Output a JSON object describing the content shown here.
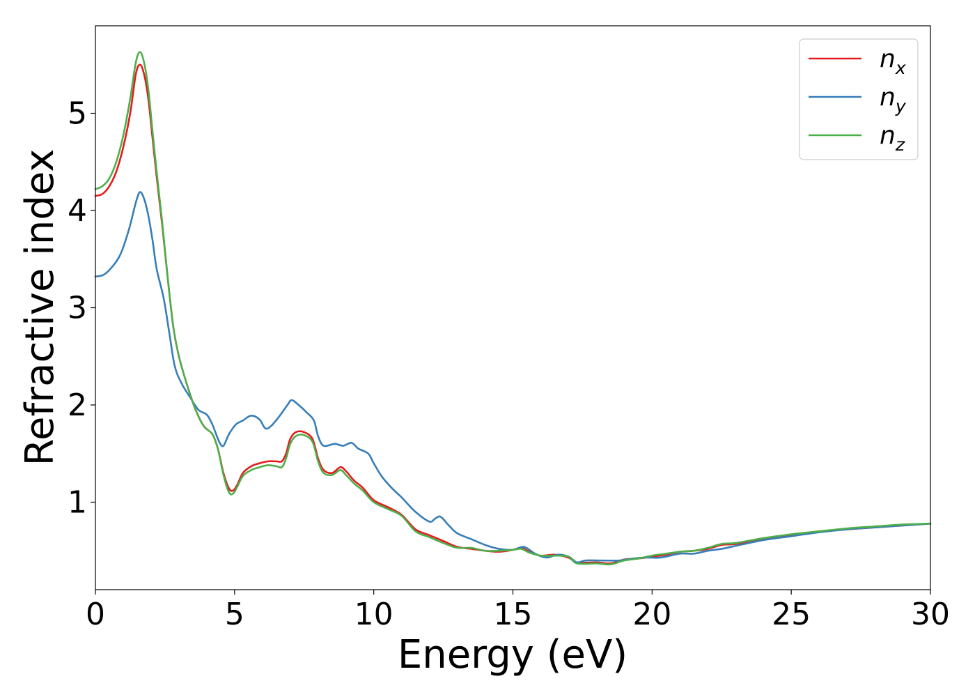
{
  "chart_data": {
    "type": "line",
    "title": "",
    "xlabel": "Energy (eV)",
    "ylabel": "Refractive index",
    "xlim": [
      0,
      30
    ],
    "ylim": [
      0.1,
      5.9
    ],
    "xticks": [
      0,
      5,
      10,
      15,
      20,
      25,
      30
    ],
    "xtick_labels": [
      "0",
      "5",
      "10",
      "15",
      "20",
      "25",
      "30"
    ],
    "yticks": [
      1,
      2,
      3,
      4,
      5
    ],
    "ytick_labels": [
      "1",
      "2",
      "3",
      "4",
      "5"
    ],
    "grid": false,
    "legend_position": "top-right",
    "series": [
      {
        "name": "n_x",
        "label_base": "n",
        "label_sub": "x",
        "color": "#e41a1c",
        "points": [
          [
            0,
            4.15
          ],
          [
            0.25,
            4.17
          ],
          [
            0.5,
            4.25
          ],
          [
            0.75,
            4.4
          ],
          [
            1.0,
            4.65
          ],
          [
            1.25,
            5.0
          ],
          [
            1.45,
            5.4
          ],
          [
            1.6,
            5.5
          ],
          [
            1.75,
            5.4
          ],
          [
            1.9,
            5.15
          ],
          [
            2.05,
            4.75
          ],
          [
            2.2,
            4.35
          ],
          [
            2.4,
            3.85
          ],
          [
            2.6,
            3.3
          ],
          [
            2.8,
            2.8
          ],
          [
            3.0,
            2.5
          ],
          [
            3.3,
            2.2
          ],
          [
            3.6,
            1.95
          ],
          [
            3.9,
            1.78
          ],
          [
            4.2,
            1.7
          ],
          [
            4.4,
            1.55
          ],
          [
            4.6,
            1.3
          ],
          [
            4.8,
            1.14
          ],
          [
            4.95,
            1.12
          ],
          [
            5.1,
            1.18
          ],
          [
            5.3,
            1.3
          ],
          [
            5.6,
            1.37
          ],
          [
            5.9,
            1.4
          ],
          [
            6.2,
            1.42
          ],
          [
            6.5,
            1.42
          ],
          [
            6.7,
            1.42
          ],
          [
            6.85,
            1.5
          ],
          [
            7.0,
            1.65
          ],
          [
            7.2,
            1.72
          ],
          [
            7.5,
            1.72
          ],
          [
            7.8,
            1.65
          ],
          [
            8.0,
            1.45
          ],
          [
            8.2,
            1.33
          ],
          [
            8.5,
            1.3
          ],
          [
            8.8,
            1.36
          ],
          [
            9.0,
            1.32
          ],
          [
            9.3,
            1.22
          ],
          [
            9.6,
            1.15
          ],
          [
            10.0,
            1.02
          ],
          [
            10.5,
            0.95
          ],
          [
            11.0,
            0.87
          ],
          [
            11.5,
            0.72
          ],
          [
            12.0,
            0.66
          ],
          [
            12.5,
            0.6
          ],
          [
            13.0,
            0.54
          ],
          [
            13.5,
            0.52
          ],
          [
            14.0,
            0.5
          ],
          [
            14.5,
            0.49
          ],
          [
            15.0,
            0.51
          ],
          [
            15.3,
            0.53
          ],
          [
            15.6,
            0.49
          ],
          [
            16.0,
            0.45
          ],
          [
            16.5,
            0.46
          ],
          [
            17.0,
            0.43
          ],
          [
            17.3,
            0.38
          ],
          [
            18.0,
            0.38
          ],
          [
            18.5,
            0.37
          ],
          [
            19.0,
            0.41
          ],
          [
            19.5,
            0.42
          ],
          [
            20.0,
            0.44
          ],
          [
            20.5,
            0.46
          ],
          [
            21.0,
            0.49
          ],
          [
            21.5,
            0.5
          ],
          [
            22.0,
            0.52
          ],
          [
            22.5,
            0.56
          ],
          [
            23.0,
            0.57
          ],
          [
            24.0,
            0.62
          ],
          [
            25.0,
            0.66
          ],
          [
            26.0,
            0.7
          ],
          [
            27.0,
            0.72
          ],
          [
            28.0,
            0.74
          ],
          [
            29.0,
            0.76
          ],
          [
            30.0,
            0.78
          ]
        ]
      },
      {
        "name": "n_y",
        "label_base": "n",
        "label_sub": "y",
        "color": "#377eb8",
        "points": [
          [
            0,
            3.32
          ],
          [
            0.3,
            3.34
          ],
          [
            0.6,
            3.42
          ],
          [
            0.9,
            3.55
          ],
          [
            1.2,
            3.8
          ],
          [
            1.45,
            4.08
          ],
          [
            1.6,
            4.19
          ],
          [
            1.75,
            4.12
          ],
          [
            1.9,
            3.95
          ],
          [
            2.05,
            3.7
          ],
          [
            2.2,
            3.4
          ],
          [
            2.45,
            3.1
          ],
          [
            2.65,
            2.75
          ],
          [
            2.85,
            2.4
          ],
          [
            3.1,
            2.22
          ],
          [
            3.4,
            2.08
          ],
          [
            3.7,
            1.95
          ],
          [
            4.0,
            1.9
          ],
          [
            4.2,
            1.8
          ],
          [
            4.45,
            1.62
          ],
          [
            4.6,
            1.58
          ],
          [
            4.8,
            1.7
          ],
          [
            5.05,
            1.8
          ],
          [
            5.3,
            1.84
          ],
          [
            5.6,
            1.89
          ],
          [
            5.9,
            1.85
          ],
          [
            6.1,
            1.76
          ],
          [
            6.3,
            1.78
          ],
          [
            6.6,
            1.88
          ],
          [
            6.9,
            2.0
          ],
          [
            7.05,
            2.05
          ],
          [
            7.3,
            2.0
          ],
          [
            7.6,
            1.92
          ],
          [
            7.85,
            1.84
          ],
          [
            8.0,
            1.68
          ],
          [
            8.2,
            1.58
          ],
          [
            8.6,
            1.6
          ],
          [
            8.9,
            1.58
          ],
          [
            9.2,
            1.61
          ],
          [
            9.45,
            1.55
          ],
          [
            9.8,
            1.5
          ],
          [
            10.0,
            1.4
          ],
          [
            10.3,
            1.26
          ],
          [
            10.7,
            1.13
          ],
          [
            11.0,
            1.05
          ],
          [
            11.5,
            0.9
          ],
          [
            12.0,
            0.8
          ],
          [
            12.2,
            0.83
          ],
          [
            12.4,
            0.85
          ],
          [
            12.7,
            0.76
          ],
          [
            13.0,
            0.68
          ],
          [
            13.5,
            0.62
          ],
          [
            14.0,
            0.56
          ],
          [
            14.5,
            0.52
          ],
          [
            15.0,
            0.51
          ],
          [
            15.4,
            0.54
          ],
          [
            15.8,
            0.47
          ],
          [
            16.2,
            0.43
          ],
          [
            16.6,
            0.46
          ],
          [
            17.0,
            0.44
          ],
          [
            17.3,
            0.38
          ],
          [
            17.6,
            0.4
          ],
          [
            18.2,
            0.4
          ],
          [
            18.8,
            0.4
          ],
          [
            19.3,
            0.42
          ],
          [
            19.8,
            0.43
          ],
          [
            20.3,
            0.43
          ],
          [
            21.0,
            0.47
          ],
          [
            21.5,
            0.47
          ],
          [
            22.0,
            0.5
          ],
          [
            22.5,
            0.52
          ],
          [
            23.0,
            0.55
          ],
          [
            24.0,
            0.61
          ],
          [
            25.0,
            0.65
          ],
          [
            26.0,
            0.69
          ],
          [
            27.0,
            0.72
          ],
          [
            28.0,
            0.74
          ],
          [
            29.0,
            0.76
          ],
          [
            30.0,
            0.78
          ]
        ]
      },
      {
        "name": "n_z",
        "label_base": "n",
        "label_sub": "z",
        "color": "#4daf4a",
        "points": [
          [
            0,
            4.22
          ],
          [
            0.25,
            4.25
          ],
          [
            0.5,
            4.33
          ],
          [
            0.75,
            4.5
          ],
          [
            1.0,
            4.77
          ],
          [
            1.25,
            5.15
          ],
          [
            1.45,
            5.52
          ],
          [
            1.6,
            5.63
          ],
          [
            1.75,
            5.52
          ],
          [
            1.9,
            5.25
          ],
          [
            2.05,
            4.82
          ],
          [
            2.2,
            4.4
          ],
          [
            2.4,
            3.88
          ],
          [
            2.6,
            3.3
          ],
          [
            2.8,
            2.8
          ],
          [
            3.0,
            2.5
          ],
          [
            3.3,
            2.2
          ],
          [
            3.6,
            1.95
          ],
          [
            3.9,
            1.78
          ],
          [
            4.2,
            1.7
          ],
          [
            4.4,
            1.55
          ],
          [
            4.6,
            1.28
          ],
          [
            4.8,
            1.1
          ],
          [
            4.95,
            1.09
          ],
          [
            5.1,
            1.16
          ],
          [
            5.3,
            1.27
          ],
          [
            5.6,
            1.33
          ],
          [
            5.9,
            1.36
          ],
          [
            6.2,
            1.38
          ],
          [
            6.5,
            1.37
          ],
          [
            6.7,
            1.36
          ],
          [
            6.85,
            1.45
          ],
          [
            7.0,
            1.6
          ],
          [
            7.2,
            1.68
          ],
          [
            7.5,
            1.69
          ],
          [
            7.8,
            1.62
          ],
          [
            8.0,
            1.42
          ],
          [
            8.2,
            1.3
          ],
          [
            8.5,
            1.28
          ],
          [
            8.8,
            1.33
          ],
          [
            9.0,
            1.28
          ],
          [
            9.3,
            1.19
          ],
          [
            9.6,
            1.12
          ],
          [
            10.0,
            1.0
          ],
          [
            10.5,
            0.93
          ],
          [
            11.0,
            0.86
          ],
          [
            11.5,
            0.7
          ],
          [
            12.0,
            0.64
          ],
          [
            12.5,
            0.58
          ],
          [
            13.0,
            0.53
          ],
          [
            13.5,
            0.53
          ],
          [
            14.0,
            0.5
          ],
          [
            14.5,
            0.5
          ],
          [
            15.0,
            0.51
          ],
          [
            15.3,
            0.52
          ],
          [
            15.6,
            0.48
          ],
          [
            16.0,
            0.45
          ],
          [
            16.5,
            0.45
          ],
          [
            17.0,
            0.44
          ],
          [
            17.3,
            0.37
          ],
          [
            18.0,
            0.37
          ],
          [
            18.5,
            0.36
          ],
          [
            19.0,
            0.4
          ],
          [
            19.5,
            0.42
          ],
          [
            20.0,
            0.45
          ],
          [
            20.5,
            0.47
          ],
          [
            21.0,
            0.49
          ],
          [
            21.5,
            0.5
          ],
          [
            22.0,
            0.53
          ],
          [
            22.5,
            0.57
          ],
          [
            23.0,
            0.58
          ],
          [
            24.0,
            0.63
          ],
          [
            25.0,
            0.67
          ],
          [
            26.0,
            0.7
          ],
          [
            27.0,
            0.73
          ],
          [
            28.0,
            0.75
          ],
          [
            29.0,
            0.77
          ],
          [
            30.0,
            0.78
          ]
        ]
      }
    ]
  }
}
